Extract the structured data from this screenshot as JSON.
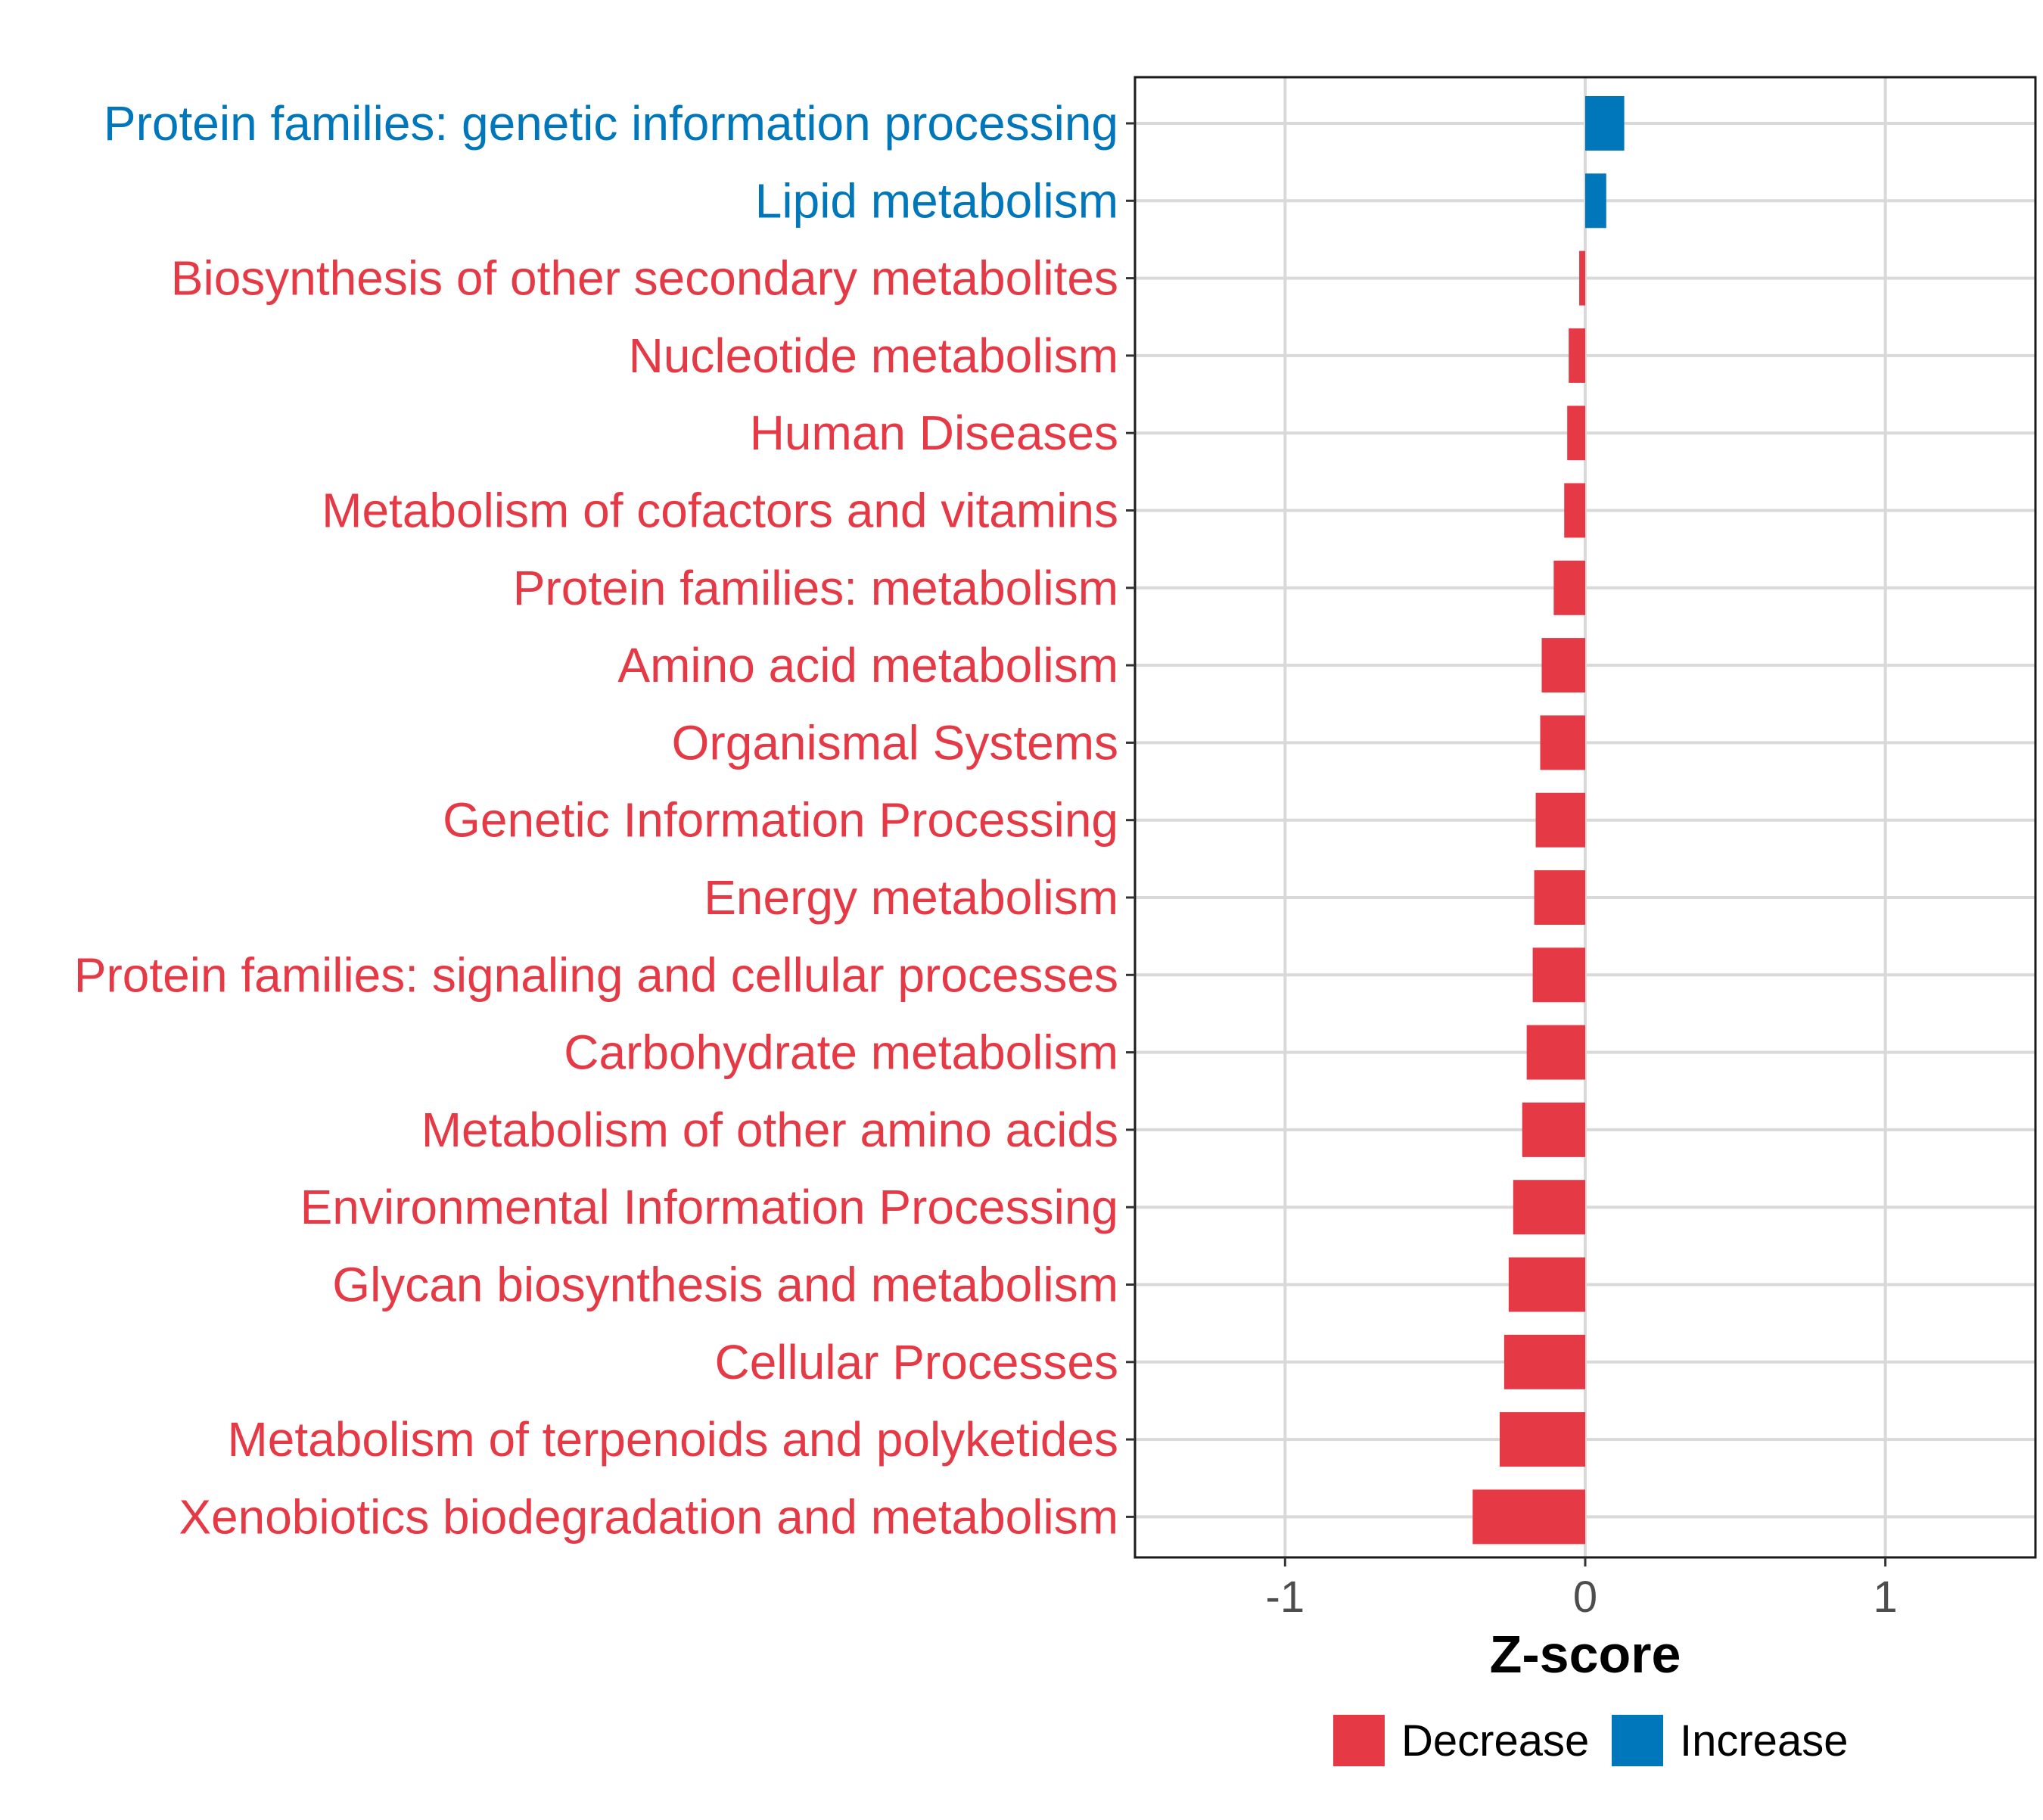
{
  "chart_data": {
    "type": "bar",
    "orientation": "horizontal",
    "title": "",
    "xlabel": "Z-score",
    "ylabel": "",
    "xlim": [
      -1.5,
      1.5
    ],
    "xticks": [
      -1,
      0,
      1
    ],
    "xtick_labels": [
      "-1",
      "0",
      "1"
    ],
    "grid": true,
    "legend_position": "bottom",
    "colors": {
      "Decrease": "#E63946",
      "Increase": "#0077BB",
      "grid": "#d9d9d9",
      "tick_text": "#4d4d4d"
    },
    "legend": [
      {
        "name": "Decrease",
        "color": "#E63946"
      },
      {
        "name": "Increase",
        "color": "#0077BB"
      }
    ],
    "categories": [
      "Protein families: genetic information processing",
      "Lipid metabolism",
      "Biosynthesis of other secondary metabolites",
      "Nucleotide metabolism",
      "Human Diseases",
      "Metabolism of cofactors and vitamins",
      "Protein families: metabolism",
      "Amino acid metabolism",
      "Organismal Systems",
      "Genetic Information Processing",
      "Energy metabolism",
      "Protein families: signaling and cellular processes",
      "Carbohydrate metabolism",
      "Metabolism of other amino acids",
      "Environmental Information Processing",
      "Glycan biosynthesis and metabolism",
      "Cellular Processes",
      "Metabolism of terpenoids and polyketides",
      "Xenobiotics biodegradation and metabolism"
    ],
    "values": [
      0.13,
      0.07,
      -0.02,
      -0.055,
      -0.06,
      -0.07,
      -0.105,
      -0.145,
      -0.15,
      -0.165,
      -0.17,
      -0.175,
      -0.195,
      -0.21,
      -0.24,
      -0.255,
      -0.27,
      -0.285,
      -0.375
    ],
    "groups": [
      "Increase",
      "Increase",
      "Decrease",
      "Decrease",
      "Decrease",
      "Decrease",
      "Decrease",
      "Decrease",
      "Decrease",
      "Decrease",
      "Decrease",
      "Decrease",
      "Decrease",
      "Decrease",
      "Decrease",
      "Decrease",
      "Decrease",
      "Decrease",
      "Decrease"
    ]
  }
}
